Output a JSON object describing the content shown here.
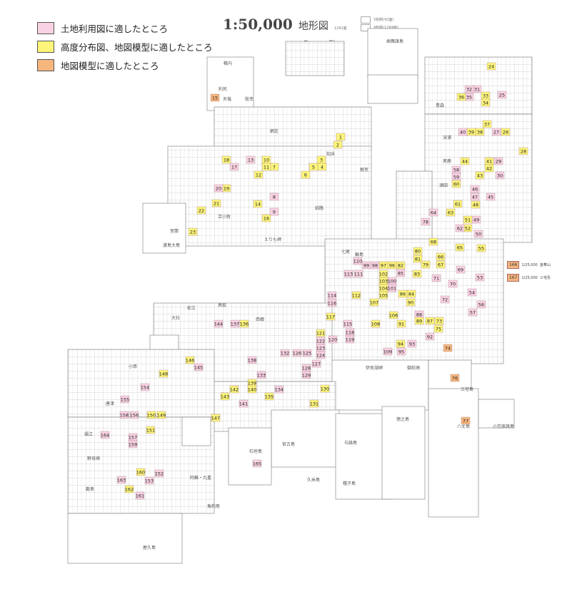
{
  "legend": [
    {
      "label": "土地利用図に適したところ",
      "color": "#f9d2e4",
      "key": "L"
    },
    {
      "label": "高度分布図、地図模型に適したところ",
      "color": "#fdf57a",
      "key": "H"
    },
    {
      "label": "地図模型に適したところ",
      "color": "#f7b67d",
      "key": "M"
    }
  ],
  "title": {
    "scale": "1:50,000",
    "kind": "地形図",
    "count": "1291面"
  },
  "print_types": [
    "3色刷(42面)",
    "4色刷(1249面)"
  ],
  "hanrei": "凡 例",
  "side_sheets": [
    {
      "number": "166",
      "scale": "1/25,000",
      "name": "金華山"
    },
    {
      "number": "167",
      "scale": "1/25,000",
      "name": "三宅島"
    }
  ],
  "place_names": [
    "稚内",
    "利尻",
    "天塩",
    "枝幸",
    "網走",
    "知床",
    "釧路",
    "根室",
    "苫小牧",
    "室蘭",
    "渡島大島",
    "えりも岬",
    "歯舞諸島",
    "青森",
    "深浦",
    "男鹿",
    "酒田",
    "輪島",
    "七尾",
    "伊良湖岬",
    "御前崎",
    "三宅島",
    "八丈島",
    "小笠原諸島",
    "大社",
    "松江",
    "鳥取",
    "西郷",
    "小串",
    "唐津",
    "福江",
    "野母崎",
    "甑島",
    "屋久島",
    "徳之島",
    "与論島",
    "久米島",
    "宮古島",
    "石垣島",
    "阿蘇・九重",
    "魚釣島",
    "種子島"
  ],
  "sheets": [
    [
      "1",
      "H"
    ],
    [
      "2",
      "H"
    ],
    [
      "3",
      "H"
    ],
    [
      "4",
      "H"
    ],
    [
      "5",
      "H"
    ],
    [
      "6",
      "H"
    ],
    [
      "7",
      "H"
    ],
    [
      "8",
      "L"
    ],
    [
      "9",
      "L"
    ],
    [
      "10",
      "H"
    ],
    [
      "11",
      "H"
    ],
    [
      "12",
      "H"
    ],
    [
      "13",
      "L"
    ],
    [
      "14",
      "H"
    ],
    [
      "15",
      "M"
    ],
    [
      "16",
      "H"
    ],
    [
      "17",
      "L"
    ],
    [
      "18",
      "H"
    ],
    [
      "19",
      "H"
    ],
    [
      "20",
      "L"
    ],
    [
      "21",
      "H"
    ],
    [
      "22",
      "H"
    ],
    [
      "23",
      "H"
    ],
    [
      "24",
      "H"
    ],
    [
      "25",
      "L"
    ],
    [
      "26",
      "H"
    ],
    [
      "27",
      "L"
    ],
    [
      "28",
      "H"
    ],
    [
      "29",
      "L"
    ],
    [
      "30",
      "L"
    ],
    [
      "31",
      "L"
    ],
    [
      "32",
      "L"
    ],
    [
      "33",
      "H"
    ],
    [
      "34",
      "H"
    ],
    [
      "35",
      "L"
    ],
    [
      "36",
      "H"
    ],
    [
      "37",
      "H"
    ],
    [
      "38",
      "H"
    ],
    [
      "39",
      "H"
    ],
    [
      "40",
      "L"
    ],
    [
      "41",
      "H"
    ],
    [
      "42",
      "H"
    ],
    [
      "43",
      "H"
    ],
    [
      "44",
      "H"
    ],
    [
      "45",
      "L"
    ],
    [
      "46",
      "L"
    ],
    [
      "47",
      "L"
    ],
    [
      "48",
      "H"
    ],
    [
      "49",
      "L"
    ],
    [
      "50",
      "L"
    ],
    [
      "51",
      "H"
    ],
    [
      "52",
      "H"
    ],
    [
      "53",
      "L"
    ],
    [
      "54",
      "L"
    ],
    [
      "55",
      "H"
    ],
    [
      "56",
      "L"
    ],
    [
      "57",
      "L"
    ],
    [
      "58",
      "L"
    ],
    [
      "59",
      "L"
    ],
    [
      "60",
      "H"
    ],
    [
      "61",
      "H"
    ],
    [
      "62",
      "L"
    ],
    [
      "63",
      "H"
    ],
    [
      "64",
      "L"
    ],
    [
      "65",
      "H"
    ],
    [
      "66",
      "H"
    ],
    [
      "67",
      "H"
    ],
    [
      "68",
      "H"
    ],
    [
      "69",
      "L"
    ],
    [
      "70",
      "L"
    ],
    [
      "71",
      "L"
    ],
    [
      "72",
      "L"
    ],
    [
      "73",
      "H"
    ],
    [
      "74",
      "M"
    ],
    [
      "75",
      "H"
    ],
    [
      "76",
      "M"
    ],
    [
      "77",
      "M"
    ],
    [
      "78",
      "L"
    ],
    [
      "79",
      "H"
    ],
    [
      "80",
      "H"
    ],
    [
      "81",
      "H"
    ],
    [
      "82",
      "H"
    ],
    [
      "83",
      "H"
    ],
    [
      "84",
      "H"
    ],
    [
      "85",
      "L"
    ],
    [
      "86",
      "H"
    ],
    [
      "87",
      "H"
    ],
    [
      "88",
      "L"
    ],
    [
      "89",
      "H"
    ],
    [
      "90",
      "H"
    ],
    [
      "91",
      "H"
    ],
    [
      "92",
      "L"
    ],
    [
      "93",
      "L"
    ],
    [
      "94",
      "H"
    ],
    [
      "95",
      "L"
    ],
    [
      "96",
      "H"
    ],
    [
      "97",
      "H"
    ],
    [
      "98",
      "L"
    ],
    [
      "99",
      "L"
    ],
    [
      "100",
      "L"
    ],
    [
      "101",
      "L"
    ],
    [
      "102",
      "H"
    ],
    [
      "103",
      "H"
    ],
    [
      "104",
      "H"
    ],
    [
      "105",
      "H"
    ],
    [
      "106",
      "H"
    ],
    [
      "107",
      "H"
    ],
    [
      "108",
      "H"
    ],
    [
      "109",
      "L"
    ],
    [
      "110",
      "L"
    ],
    [
      "111",
      "L"
    ],
    [
      "112",
      "H"
    ],
    [
      "113",
      "L"
    ],
    [
      "114",
      "L"
    ],
    [
      "115",
      "L"
    ],
    [
      "116",
      "L"
    ],
    [
      "117",
      "H"
    ],
    [
      "118",
      "L"
    ],
    [
      "119",
      "L"
    ],
    [
      "120",
      "L"
    ],
    [
      "121",
      "H"
    ],
    [
      "122",
      "L"
    ],
    [
      "123",
      "L"
    ],
    [
      "124",
      "L"
    ],
    [
      "125",
      "L"
    ],
    [
      "126",
      "L"
    ],
    [
      "127",
      "L"
    ],
    [
      "128",
      "L"
    ],
    [
      "129",
      "L"
    ],
    [
      "130",
      "H"
    ],
    [
      "131",
      "H"
    ],
    [
      "132",
      "L"
    ],
    [
      "133",
      "L"
    ],
    [
      "134",
      "L"
    ],
    [
      "135",
      "H"
    ],
    [
      "136",
      "H"
    ],
    [
      "137",
      "L"
    ],
    [
      "138",
      "L"
    ],
    [
      "139",
      "H"
    ],
    [
      "140",
      "H"
    ],
    [
      "141",
      "L"
    ],
    [
      "142",
      "H"
    ],
    [
      "143",
      "H"
    ],
    [
      "144",
      "L"
    ],
    [
      "145",
      "L"
    ],
    [
      "146",
      "H"
    ],
    [
      "147",
      "H"
    ],
    [
      "148",
      "H"
    ],
    [
      "149",
      "H"
    ],
    [
      "150",
      "H"
    ],
    [
      "151",
      "H"
    ],
    [
      "152",
      "L"
    ],
    [
      "153",
      "L"
    ],
    [
      "154",
      "L"
    ],
    [
      "155",
      "L"
    ],
    [
      "156",
      "L"
    ],
    [
      "157",
      "L"
    ],
    [
      "158",
      "L"
    ],
    [
      "159",
      "L"
    ],
    [
      "160",
      "H"
    ],
    [
      "161",
      "L"
    ],
    [
      "162",
      "H"
    ],
    [
      "163",
      "L"
    ],
    [
      "164",
      "L"
    ],
    [
      "165",
      "L"
    ]
  ]
}
